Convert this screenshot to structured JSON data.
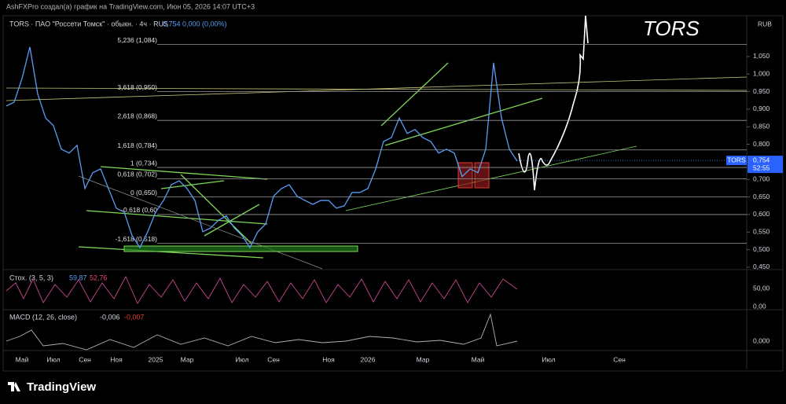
{
  "header": {
    "author_line": "AshFXPro создал(а) график на TradingView.com, Июн 05, 2026 14:07 UTC+3",
    "logo": "TradingView"
  },
  "chart_data": {
    "type": "line",
    "title": "TORS · ПАО \"Россети Томск\" · обыкн. · 4ч · RUS",
    "quote": "0,754  0,000 (0,00%)",
    "annotation": "TORS",
    "currency": "RUB",
    "categories": [
      null,
      null,
      "Май",
      null,
      null,
      null,
      "Июл",
      null,
      null,
      null,
      "Сен",
      null,
      null,
      null,
      "Ноя",
      null,
      null,
      null,
      null,
      "2025",
      null,
      null,
      null,
      "Мар",
      null,
      null,
      null,
      null,
      null,
      null,
      "Июл",
      null,
      null,
      null,
      "Сен",
      null,
      null,
      null,
      null,
      null,
      null,
      "Ноя",
      null,
      null,
      null,
      null,
      "2026",
      null,
      null,
      null,
      null,
      null,
      null,
      "Мар",
      null,
      null,
      null,
      null,
      null,
      null,
      "Май",
      null,
      null,
      null,
      null,
      null,
      null,
      null,
      null,
      "Июл",
      null,
      null,
      null,
      null,
      null,
      null,
      null,
      null,
      "Сен",
      null,
      null,
      null,
      null,
      null,
      null,
      null,
      null,
      null,
      null,
      null,
      null,
      null,
      null,
      null,
      null
    ],
    "series": [
      {
        "name": "TORS",
        "color": "#5b9cf5",
        "values": [
          0.909,
          0.92,
          0.987,
          1.077,
          0.943,
          0.875,
          0.853,
          0.786,
          0.775,
          0.797,
          0.674,
          0.719,
          0.73,
          0.674,
          0.618,
          0.607,
          0.54,
          0.506,
          0.551,
          0.607,
          0.64,
          0.685,
          0.696,
          0.674,
          0.64,
          0.551,
          0.562,
          0.584,
          0.596,
          0.562,
          0.54,
          0.506,
          0.551,
          0.573,
          0.652,
          0.674,
          0.685,
          0.652,
          0.64,
          0.629,
          0.64,
          0.64,
          0.618,
          0.625,
          0.663,
          0.663,
          0.674,
          0.73,
          0.808,
          0.819,
          0.875,
          0.831,
          0.842,
          0.819,
          0.808,
          0.775,
          0.786,
          0.775,
          0.708,
          0.73,
          0.719,
          0.786,
          1.032,
          0.875,
          0.786,
          0.752,
          null,
          null,
          null,
          null,
          null,
          null,
          null,
          null,
          null,
          null,
          null,
          null,
          null,
          null,
          null,
          null,
          null,
          null,
          null,
          null,
          null,
          null,
          null,
          null,
          null,
          null,
          null,
          null,
          null
        ]
      }
    ],
    "ylim": [
      0.4455,
      1.166
    ],
    "yticks": [
      {
        "value": 0.45,
        "label": "0,450"
      },
      {
        "value": 0.5,
        "label": "0,500"
      },
      {
        "value": 0.55,
        "label": "0,550"
      },
      {
        "value": 0.6,
        "label": "0,600"
      },
      {
        "value": 0.65,
        "label": "0,650"
      },
      {
        "value": 0.7,
        "label": "0,700"
      },
      {
        "value": 0.75,
        "label": "0,750"
      },
      {
        "value": 0.8,
        "label": "0,800"
      },
      {
        "value": 0.85,
        "label": "0,850"
      },
      {
        "value": 0.9,
        "label": "0,900"
      },
      {
        "value": 0.95,
        "label": "0,950"
      },
      {
        "value": 1.0,
        "label": "1,000"
      },
      {
        "value": 1.05,
        "label": "1,050"
      }
    ],
    "fib_levels": [
      {
        "value": 1.084,
        "label": "5,236 (1,084)"
      },
      {
        "value": 0.95,
        "label": "3,618 (0,950)"
      },
      {
        "value": 0.868,
        "label": "2,618 (0,868)"
      },
      {
        "value": 0.784,
        "label": "1,618 (0,784)"
      },
      {
        "value": 0.734,
        "label": "1 (0,734)"
      },
      {
        "value": 0.702,
        "label": "0,618 (0,702)"
      },
      {
        "value": 0.65,
        "label": "0 (0,650)"
      },
      {
        "value": 0.6,
        "label": "-0,618 (0,60"
      },
      {
        "value": 0.518,
        "label": "-1,618 (0,518)"
      }
    ],
    "last_price": {
      "value": 0.754,
      "label": "0,754",
      "ticker": "TORS",
      "countdown": "52:55"
    },
    "stochastic": {
      "label": "Стох. (3, 5, 3)",
      "k": "59,87",
      "d": "52,76",
      "ticks": [
        "50,00",
        "0,00"
      ]
    },
    "macd": {
      "label": "MACD (12, 26, close)",
      "macd": "-0,006",
      "signal": "-0,007",
      "ticks": [
        "0,000"
      ]
    }
  }
}
